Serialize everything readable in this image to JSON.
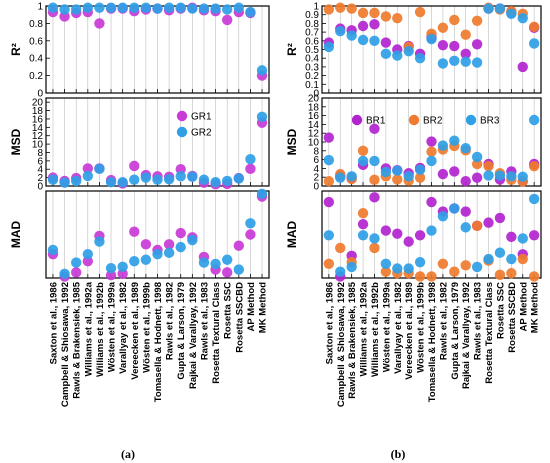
{
  "chart_data": [
    {
      "type": "scatter",
      "caption": "(a)",
      "categories": [
        "Saxton et al., 1986",
        "Campbell & Shiosawa, 1992",
        "Rawls & Brakensiek, 1985",
        "Williams et al., 1992a",
        "Williams et al., 1992b",
        "Wösten et al., 1999a",
        "Varallyay et al., 1982",
        "Vereecken et al., 1989",
        "Wösten et al., 1999b",
        "Tomasella & Hodnett, 1998",
        "Rawls et al., 1982",
        "Gupta & Larson, 1979",
        "Rajkai & Varallyay, 1992",
        "Rawls et al., 1983",
        "Rosetta Textural Class",
        "Rosetta SSC",
        "Rosetta SSCBD",
        "AP Method",
        "MK Method"
      ],
      "legend": {
        "location": "right",
        "entries": [
          {
            "name": "GR1",
            "color": "#c93ad6"
          },
          {
            "name": "GR2",
            "color": "#2f9fe6"
          }
        ]
      },
      "panels": [
        {
          "ylabel": "R²",
          "ylim": [
            0,
            1
          ],
          "yticks": [
            0,
            0.2,
            0.4,
            0.6,
            0.8,
            1
          ],
          "series": [
            {
              "name": "GR1",
              "values": [
                0.93,
                0.88,
                0.92,
                0.93,
                0.8,
                0.97,
                0.97,
                0.94,
                0.96,
                0.97,
                0.95,
                0.97,
                0.98,
                0.95,
                0.94,
                0.84,
                0.93,
                0.92,
                0.2
              ]
            },
            {
              "name": "GR2",
              "values": [
                0.98,
                0.96,
                0.96,
                0.98,
                0.98,
                0.98,
                0.98,
                0.98,
                0.98,
                0.97,
                0.98,
                0.98,
                0.97,
                0.97,
                0.97,
                0.96,
                0.98,
                0.93,
                0.26
              ]
            }
          ]
        },
        {
          "ylabel": "MSD",
          "ylim": [
            0,
            21
          ],
          "yticks": [
            0,
            2,
            4,
            6,
            8,
            10,
            12,
            14,
            16,
            18,
            20
          ],
          "series": [
            {
              "name": "GR1",
              "values": [
                2,
                1.2,
                1.9,
                4.2,
                4.2,
                1.4,
                0.6,
                4.8,
                2.6,
                2.3,
                2.2,
                4,
                2.4,
                0.8,
                0.4,
                0.5,
                1.9,
                4.1,
                15.1
              ]
            },
            {
              "name": "GR2",
              "values": [
                1.5,
                0.8,
                1.2,
                2.4,
                4.1,
                0.9,
                0.9,
                1.5,
                2,
                1.5,
                1.6,
                2.3,
                2.2,
                1.5,
                0.9,
                1.2,
                1.8,
                6.4,
                16.5
              ]
            }
          ]
        },
        {
          "ylabel": "MAD",
          "ylim": [
            0,
            0.62
          ],
          "yticks": [],
          "series": [
            {
              "name": "GR1",
              "values": [
                0.17,
                0.01,
                0.04,
                0.12,
                0.3,
                0.02,
                0.03,
                0.33,
                0.24,
                0.2,
                0.24,
                0.32,
                0.29,
                0.15,
                0.06,
                0.04,
                0.23,
                0.31,
                0.58
              ]
            },
            {
              "name": "GR2",
              "values": [
                0.2,
                0.03,
                0.11,
                0.17,
                0.26,
                0.07,
                0.08,
                0.12,
                0.13,
                0.17,
                0.18,
                0.22,
                0.27,
                0.11,
                0.1,
                0.13,
                0.06,
                0.39,
                0.6
              ]
            }
          ]
        }
      ]
    },
    {
      "type": "scatter",
      "caption": "(b)",
      "categories": [
        "Saxton et al., 1986",
        "Campbell & Shiosawa, 1992",
        "Rawls & Brakensiek, 1985",
        "Williams et al., 1992a",
        "Williams et al., 1992b",
        "Wösten et al., 1999a",
        "Varallyay et al., 1982",
        "Vereecken et al., 1989",
        "Wösten et al., 1999b",
        "Tomasella & Hodnett, 1998",
        "Rawls et al., 1982",
        "Gupta & Larson, 1979",
        "Rajkai & Varallyay, 1992",
        "Rawls et al., 1983",
        "Rosetta Textural Class",
        "Rosetta SSC",
        "Rosetta SSCBD",
        "AP Method",
        "MK Method"
      ],
      "legend": {
        "location": "top",
        "entries": [
          {
            "name": "BR1",
            "color": "#b224cf"
          },
          {
            "name": "BR2",
            "color": "#ef7b2e"
          },
          {
            "name": "BR3",
            "color": "#2f9fe6"
          }
        ]
      },
      "panels": [
        {
          "ylabel": "R²",
          "ylim": [
            0,
            1
          ],
          "yticks": [
            0,
            0.1,
            0.2,
            0.3,
            0.4,
            0.5,
            0.6,
            0.7,
            0.8,
            0.9,
            1
          ],
          "series": [
            {
              "name": "BR1",
              "values": [
                0.58,
                0.74,
                0.72,
                0.77,
                0.79,
                0.58,
                0.5,
                0.54,
                0.45,
                0.64,
                0.55,
                0.54,
                0.45,
                0.56,
                0.97,
                0.97,
                0.93,
                0.3,
                0.75
              ]
            },
            {
              "name": "BR2",
              "values": [
                0.96,
                0.98,
                0.97,
                0.92,
                0.92,
                0.88,
                0.86,
                0.53,
                0.93,
                0.68,
                0.75,
                0.84,
                0.67,
                0.83,
                0.98,
                0.96,
                0.94,
                0.91,
                0.76
              ]
            },
            {
              "name": "BR3",
              "values": [
                0.53,
                0.71,
                0.66,
                0.61,
                0.6,
                0.45,
                0.43,
                0.48,
                0.4,
                0.62,
                0.34,
                0.37,
                0.36,
                0.35,
                0.97,
                0.97,
                0.91,
                0.86,
                0.57
              ]
            }
          ]
        },
        {
          "ylabel": "MSD",
          "ylim": [
            0,
            20
          ],
          "yticks": [
            0,
            2,
            4,
            6,
            8,
            10,
            12,
            14,
            16,
            18,
            20
          ],
          "series": [
            {
              "name": "BR1",
              "values": [
                11,
                2.3,
                1.8,
                4.8,
                13,
                4,
                3.6,
                2.9,
                4.1,
                10.1,
                2.7,
                3.3,
                1.1,
                1.9,
                5,
                1.5,
                3.3,
                1.1,
                5
              ]
            },
            {
              "name": "BR2",
              "values": [
                1.1,
                2.7,
                1.6,
                8,
                1.4,
                2.2,
                1.5,
                1.2,
                1.9,
                7.8,
                8.3,
                9.1,
                8.1,
                5,
                4.5,
                2.9,
                1.4,
                1,
                4.5
              ]
            },
            {
              "name": "BR3",
              "values": [
                5.9,
                1.9,
                2.2,
                5.7,
                5.7,
                3.2,
                3.5,
                2.2,
                3.7,
                5.7,
                9.2,
                10.3,
                8.6,
                6.6,
                2.4,
                2.4,
                2.2,
                2.1,
                15
              ]
            }
          ]
        },
        {
          "ylabel": "MAD",
          "ylim": [
            0,
            0.55
          ],
          "yticks": [],
          "series": [
            {
              "name": "BR1",
              "values": [
                0.48,
                0.01,
                0.14,
                0.34,
                0.51,
                0.3,
                0.28,
                0.23,
                0.27,
                0.48,
                0.42,
                0.44,
                0.42,
                0.33,
                0.35,
                0.38,
                0.26,
                0.15,
                0.27
              ]
            },
            {
              "name": "BR2",
              "values": [
                0.09,
                0.19,
                0.1,
                0.41,
                0.19,
                0.04,
                0.03,
                0.03,
                0.01,
                0.01,
                0.09,
                0.04,
                0.08,
                0.33,
                0.11,
                0.02,
                0.03,
                0.12,
                0.01
              ]
            },
            {
              "name": "BR3",
              "values": [
                0.27,
                0.04,
                0.07,
                0.27,
                0.25,
                0.09,
                0.06,
                0.06,
                0.1,
                0.3,
                0.39,
                0.44,
                0.32,
                0.07,
                0.12,
                0.16,
                0.12,
                0.25,
                0.5
              ]
            }
          ]
        }
      ]
    }
  ]
}
